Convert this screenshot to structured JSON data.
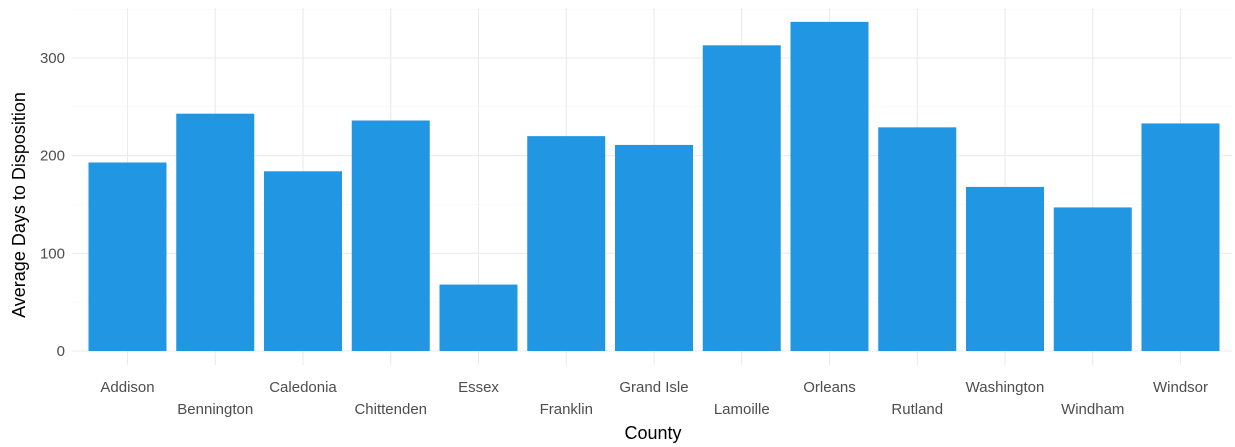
{
  "chart_data": {
    "type": "bar",
    "title": "",
    "xlabel": "County",
    "ylabel": "Average Days to Disposition",
    "categories": [
      "Addison",
      "Bennington",
      "Caledonia",
      "Chittenden",
      "Essex",
      "Franklin",
      "Grand Isle",
      "Lamoille",
      "Orleans",
      "Rutland",
      "Washington",
      "Windham",
      "Windsor"
    ],
    "values": [
      193,
      243,
      184,
      236,
      68,
      220,
      211,
      313,
      337,
      229,
      168,
      147,
      233
    ],
    "ylim": [
      0,
      350
    ],
    "yticks": [
      0,
      100,
      200,
      300
    ],
    "grid": true,
    "legend": "none",
    "bar_color": "#2196e3",
    "staggered_x_labels": true
  }
}
